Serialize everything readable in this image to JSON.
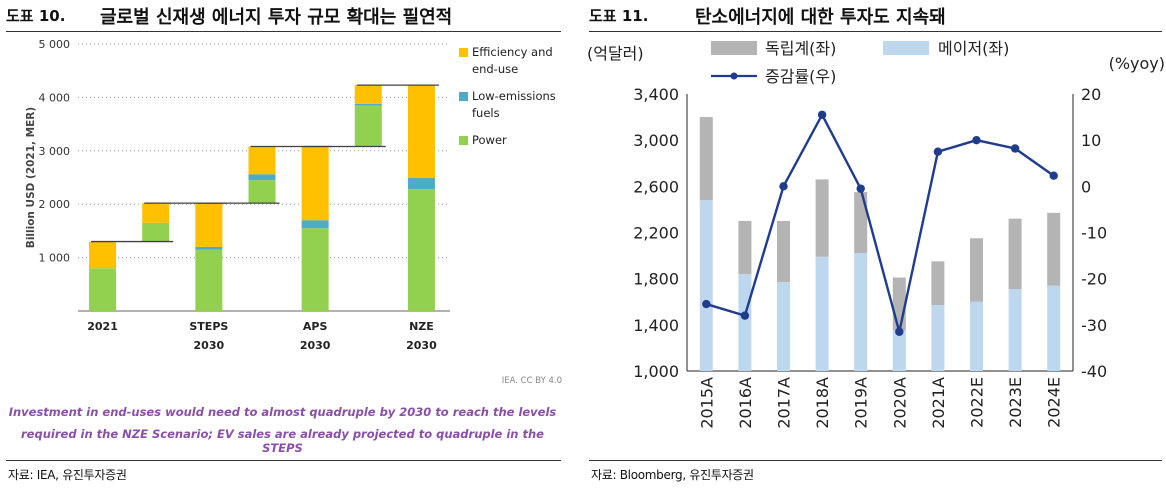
{
  "left": {
    "fig_no": "도표 10.",
    "title": "글로벌 신재생 에너지 투자 규모 확대는 필연적",
    "source": "자료: IEA, 유진투자증권",
    "credit": "IEA. CC BY 4.0",
    "note_line1": "Investment in end-uses would need to almost quadruple by 2030 to reach the levels",
    "note_line2": "required in the NZE Scenario; EV sales are already projected to quadruple in the STEPS",
    "chart_data": {
      "type": "bar",
      "subtype": "waterfall",
      "ylabel": "Billion USD (2021, MER)",
      "ylim": [
        0,
        5000
      ],
      "yticks": [
        "5 000",
        "4 000",
        "3 000",
        "2 000",
        "1 000"
      ],
      "categories": [
        "2021",
        "STEPS 2030",
        "APS 2030",
        "NZE 2030"
      ],
      "category_labels": [
        [
          "2021",
          ""
        ],
        [
          "STEPS",
          "2030"
        ],
        [
          "APS",
          "2030"
        ],
        [
          "NZE",
          "2030"
        ]
      ],
      "legend_position": "right",
      "series": [
        {
          "name": "Efficiency and end-use",
          "legend": [
            "Efficiency and",
            "end-use"
          ],
          "color": "#FFC000"
        },
        {
          "name": "Low-emissions fuels",
          "legend": [
            "Low-emissions",
            "fuels"
          ],
          "color": "#4BACC6"
        },
        {
          "name": "Power",
          "legend": [
            "Power"
          ],
          "color": "#92D050"
        }
      ],
      "bars": [
        {
          "kind": "total",
          "category": "2021",
          "base": 0,
          "segments": [
            {
              "series": "Power",
              "value": 800
            },
            {
              "series": "Efficiency and end-use",
              "value": 500
            }
          ]
        },
        {
          "kind": "step",
          "base": 1300,
          "segments": [
            {
              "series": "Power",
              "value": 350
            },
            {
              "series": "Efficiency and end-use",
              "value": 370
            }
          ]
        },
        {
          "kind": "total",
          "category": "STEPS 2030",
          "base": 0,
          "segments": [
            {
              "series": "Power",
              "value": 1150
            },
            {
              "series": "Low-emissions fuels",
              "value": 50
            },
            {
              "series": "Efficiency and end-use",
              "value": 820
            }
          ]
        },
        {
          "kind": "step",
          "base": 2020,
          "segments": [
            {
              "series": "Power",
              "value": 430
            },
            {
              "series": "Low-emissions fuels",
              "value": 110
            },
            {
              "series": "Efficiency and end-use",
              "value": 520
            }
          ]
        },
        {
          "kind": "total",
          "category": "APS 2030",
          "base": 0,
          "segments": [
            {
              "series": "Power",
              "value": 1550
            },
            {
              "series": "Low-emissions fuels",
              "value": 150
            },
            {
              "series": "Efficiency and end-use",
              "value": 1380
            }
          ]
        },
        {
          "kind": "step",
          "base": 3080,
          "segments": [
            {
              "series": "Power",
              "value": 770
            },
            {
              "series": "Low-emissions fuels",
              "value": 30
            },
            {
              "series": "Efficiency and end-use",
              "value": 350
            }
          ]
        },
        {
          "kind": "total",
          "category": "NZE 2030",
          "base": 0,
          "segments": [
            {
              "series": "Power",
              "value": 2280
            },
            {
              "series": "Low-emissions fuels",
              "value": 210
            },
            {
              "series": "Efficiency and end-use",
              "value": 1740
            }
          ]
        }
      ]
    }
  },
  "right": {
    "fig_no": "도표 11.",
    "title": "탄소에너지에 대한 투자도 지속돼",
    "source": "자료: Bloomberg, 유진투자증권",
    "chart_data": {
      "type": "bar",
      "subtype": "stacked bar + line (dual axis)",
      "y_left_label": "(억달러)",
      "y_right_label": "(%yoy)",
      "ylim_left": [
        1000,
        3400
      ],
      "ylim_right": [
        -40,
        20
      ],
      "yticks_left": [
        "1,000",
        "1,400",
        "1,800",
        "2,200",
        "2,600",
        "3,000",
        "3,400"
      ],
      "yticks_right": [
        "-40",
        "-30",
        "-20",
        "-10",
        "0",
        "10",
        "20"
      ],
      "categories": [
        "2015A",
        "2016A",
        "2017A",
        "2018A",
        "2019A",
        "2020A",
        "2021A",
        "2022E",
        "2023E",
        "2024E"
      ],
      "legend_position": "top",
      "series": [
        {
          "name": "메이저(좌)",
          "axis": "left",
          "type": "bar",
          "color": "#BDD7EE",
          "values": [
            2480,
            1840,
            1770,
            1990,
            2020,
            1350,
            1570,
            1600,
            1710,
            1740
          ]
        },
        {
          "name": "독립계(좌)",
          "axis": "left",
          "type": "bar",
          "color": "#B4B4B4",
          "values": [
            720,
            460,
            530,
            670,
            530,
            460,
            380,
            550,
            610,
            630
          ]
        },
        {
          "name": "증감률(우)",
          "axis": "right",
          "type": "line",
          "color": "#1F3D8C",
          "values": [
            -25.5,
            -28.0,
            0.0,
            15.5,
            -0.5,
            -31.5,
            7.5,
            10.0,
            8.2,
            2.3
          ]
        }
      ]
    }
  }
}
